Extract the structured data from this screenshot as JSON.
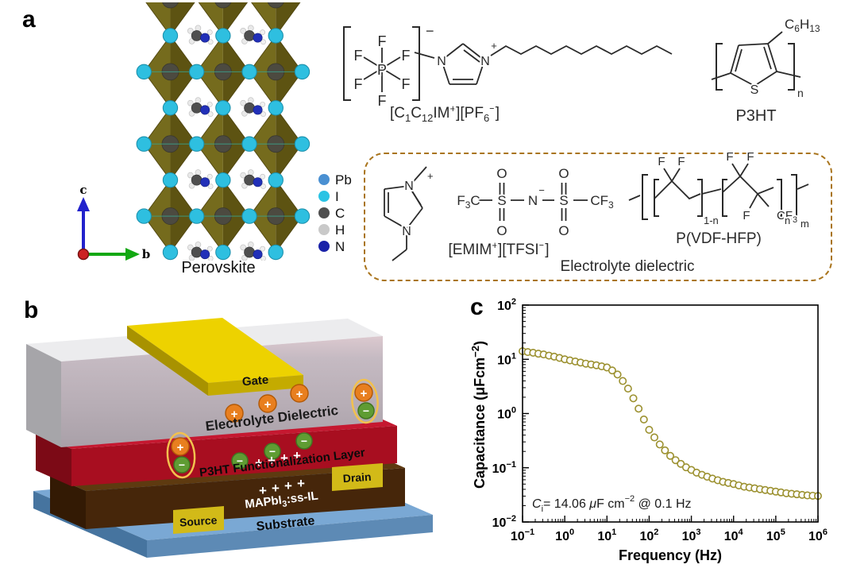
{
  "figure": {
    "panel_a_label": "a",
    "panel_b_label": "b",
    "panel_c_label": "c"
  },
  "panel_a": {
    "perovskite_caption": "Perovskite",
    "axis_indicator": {
      "c": "c",
      "b": "b"
    },
    "legend": [
      {
        "label": "Pb",
        "color": "#4a90d2"
      },
      {
        "label": "I",
        "color": "#2bc3e4"
      },
      {
        "label": "C",
        "color": "#4f4f4f"
      },
      {
        "label": "H",
        "color": "#c9c9c9"
      },
      {
        "label": "N",
        "color": "#1a22a8"
      }
    ],
    "atoms": {
      "F": "F",
      "P": "P",
      "N": "N",
      "S": "S",
      "O": "O",
      "plus": "+",
      "minus": "−",
      "n": "n",
      "m": "m",
      "one_minus_n": "1-n"
    },
    "groups": {
      "f3c": {
        "p1": "F",
        "sub": "3",
        "p2": "C"
      },
      "cf3": {
        "p1": "CF",
        "sub": "3"
      },
      "hexyl": {
        "p1": "C",
        "sub1": "6",
        "p2": "H",
        "sub2": "13"
      }
    },
    "labels": {
      "il": {
        "p1": "[C",
        "sub1": "1",
        "p2": "C",
        "sub2": "12",
        "p3": "IM",
        "sup1": "+",
        "p4": "][PF",
        "sub3": "6",
        "sup2": "−",
        "p5": "]"
      },
      "p3ht": "P3HT",
      "emim_tfsi": {
        "p1": "[EMIM",
        "sup1": "+",
        "p2": "][TFSI",
        "sup2": "−",
        "p3": "]"
      },
      "pvdf": "P(VDF-HFP)",
      "box_caption": "Electrolyte dielectric"
    }
  },
  "panel_b": {
    "labels": {
      "gate": "Gate",
      "dielectric": "Electrolyte Dielectric",
      "p3ht_layer": "P3HT Functionalization Layer",
      "perovskite": {
        "p1": "MAPbI",
        "sub": "3",
        "p2": ":ss-IL"
      },
      "substrate": "Substrate",
      "source": "Source",
      "drain": "Drain",
      "plus": "+",
      "plus_ion": "+",
      "minus_ion": "−"
    },
    "colors": {
      "gate": "#edd200",
      "dielectric_front": "#b8aeb6",
      "p3ht_front": "#a80e20",
      "perovskite_front": "#46260a",
      "substrate_top": "#7aa8d4",
      "electrode": "#d2ba18",
      "cation": "#e87f1f",
      "anion": "#5f9c33",
      "pair_ring": "#f2c14e"
    }
  },
  "chart_data": {
    "type": "scatter",
    "xlabel": "Frequency (Hz)",
    "ylabel_parts": {
      "p1": "Capacitance (",
      "mu": "μ",
      "p2": "Fcm",
      "sup": "−2",
      "p3": ")"
    },
    "x_scale": "log",
    "y_scale": "log",
    "xlog_range": [
      -1,
      6
    ],
    "ylog_range": [
      -2,
      2
    ],
    "tick_base": "10",
    "x_tick_exponents": [
      "−1",
      "0",
      "1",
      "2",
      "3",
      "4",
      "5",
      "6"
    ],
    "y_tick_exponents": [
      "2",
      "1",
      "0",
      "−1",
      "−2"
    ],
    "point_color": "#9c9130",
    "legend_position": "none",
    "grid": false,
    "annotation": {
      "p1": "C",
      "sub": "i",
      "p2": "= 14.06 ",
      "mu": "μ",
      "p3": "F cm",
      "sup": "−2",
      "p4": " @ 0.1 Hz"
    },
    "points": [
      [
        0.1,
        14.1
      ],
      [
        0.133,
        13.6
      ],
      [
        0.178,
        13.2
      ],
      [
        0.237,
        12.7
      ],
      [
        0.316,
        12.3
      ],
      [
        0.422,
        11.7
      ],
      [
        0.562,
        11.2
      ],
      [
        0.75,
        10.6
      ],
      [
        1,
        10.0
      ],
      [
        1.33,
        9.55
      ],
      [
        1.78,
        9.12
      ],
      [
        2.37,
        8.71
      ],
      [
        3.16,
        8.32
      ],
      [
        4.22,
        8.04
      ],
      [
        5.62,
        7.76
      ],
      [
        7.5,
        7.41
      ],
      [
        10,
        7.08
      ],
      [
        13.3,
        6.24
      ],
      [
        17.8,
        5.25
      ],
      [
        23.7,
        3.98
      ],
      [
        31.6,
        2.88
      ],
      [
        42.2,
        1.91
      ],
      [
        56.2,
        1.23
      ],
      [
        75,
        0.776
      ],
      [
        100,
        0.501
      ],
      [
        133,
        0.363
      ],
      [
        178,
        0.269
      ],
      [
        237,
        0.209
      ],
      [
        316,
        0.166
      ],
      [
        422,
        0.138
      ],
      [
        562,
        0.118
      ],
      [
        750,
        0.102
      ],
      [
        1000,
        0.0912
      ],
      [
        1330,
        0.0813
      ],
      [
        1780,
        0.0741
      ],
      [
        2370,
        0.0684
      ],
      [
        3160,
        0.0631
      ],
      [
        4220,
        0.0589
      ],
      [
        5620,
        0.055
      ],
      [
        7500,
        0.0525
      ],
      [
        10000,
        0.0501
      ],
      [
        13300,
        0.0473
      ],
      [
        17800,
        0.0447
      ],
      [
        23700,
        0.0432
      ],
      [
        31600,
        0.0417
      ],
      [
        42200,
        0.0403
      ],
      [
        56200,
        0.0389
      ],
      [
        75000,
        0.0376
      ],
      [
        100000,
        0.0363
      ],
      [
        133000,
        0.0351
      ],
      [
        178000,
        0.0339
      ],
      [
        237000,
        0.0331
      ],
      [
        316000,
        0.0324
      ],
      [
        422000,
        0.0316
      ],
      [
        562000,
        0.0309
      ],
      [
        750000,
        0.0305
      ],
      [
        1000000,
        0.0302
      ]
    ]
  }
}
